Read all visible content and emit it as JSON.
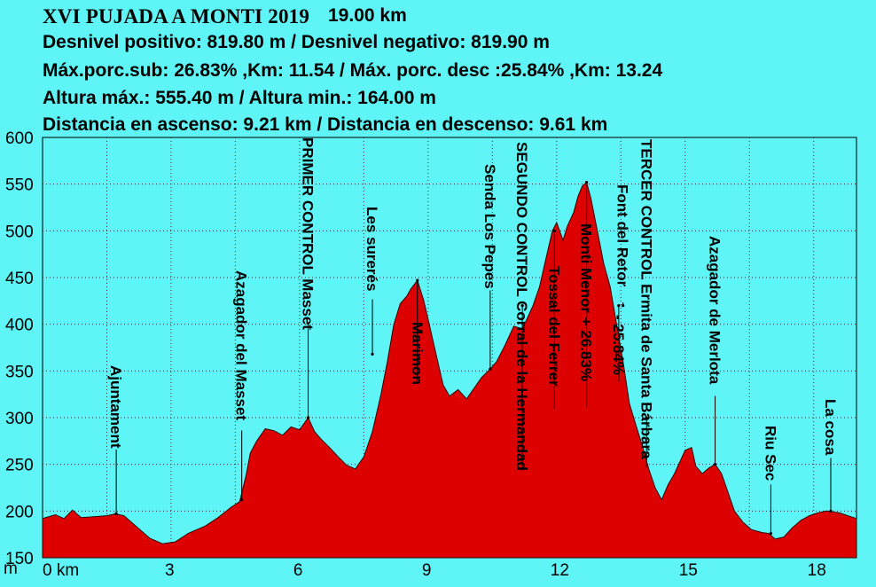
{
  "header": {
    "title": "XVI PUJADA A MONTI 2019",
    "distance": "19.00 km",
    "line1": "Desnivel positivo: 819.80 m / Desnivel negativo: 819.90 m",
    "line2": "Máx.porc.sub: 26.83% ,Km: 11.54 / Máx. porc. desc :25.84% ,Km: 13.24",
    "line3": "Altura máx.: 555.40 m / Altura min.: 164.00 m",
    "line4": "Distancia en ascenso: 9.21 km / Distancia en descenso: 9.61 km"
  },
  "colors": {
    "background": "#5ff4f6",
    "fill": "#dd0000",
    "outline": "#330000",
    "grid": "#333333"
  },
  "chart_data": {
    "type": "area",
    "xlim": [
      0,
      19.0
    ],
    "ylim": [
      150,
      600
    ],
    "y_unit": "m",
    "x_unit": "km",
    "y_ticks": [
      150,
      200,
      250,
      300,
      350,
      400,
      450,
      500,
      550,
      600
    ],
    "x_ticks": [
      0,
      3,
      6,
      9,
      12,
      15,
      18
    ],
    "x_tick_labels": [
      "0 km",
      "3",
      "6",
      "9",
      "12",
      "15",
      "18"
    ],
    "profile": [
      [
        0.0,
        192
      ],
      [
        0.3,
        196
      ],
      [
        0.5,
        192
      ],
      [
        0.7,
        201
      ],
      [
        0.9,
        193
      ],
      [
        1.2,
        194
      ],
      [
        1.5,
        195
      ],
      [
        1.7,
        197
      ],
      [
        1.9,
        195
      ],
      [
        2.2,
        183
      ],
      [
        2.5,
        171
      ],
      [
        2.8,
        165
      ],
      [
        3.1,
        167
      ],
      [
        3.4,
        176
      ],
      [
        3.8,
        184
      ],
      [
        4.1,
        193
      ],
      [
        4.4,
        204
      ],
      [
        4.6,
        210
      ],
      [
        4.75,
        238
      ],
      [
        4.85,
        262
      ],
      [
        5.0,
        275
      ],
      [
        5.2,
        288
      ],
      [
        5.4,
        286
      ],
      [
        5.6,
        281
      ],
      [
        5.8,
        290
      ],
      [
        6.0,
        287
      ],
      [
        6.2,
        300
      ],
      [
        6.35,
        285
      ],
      [
        6.5,
        277
      ],
      [
        6.7,
        268
      ],
      [
        6.9,
        258
      ],
      [
        7.1,
        249
      ],
      [
        7.3,
        245
      ],
      [
        7.5,
        258
      ],
      [
        7.7,
        285
      ],
      [
        7.9,
        325
      ],
      [
        8.05,
        360
      ],
      [
        8.2,
        400
      ],
      [
        8.35,
        422
      ],
      [
        8.5,
        430
      ],
      [
        8.6,
        438
      ],
      [
        8.75,
        447
      ],
      [
        8.9,
        425
      ],
      [
        9.05,
        395
      ],
      [
        9.2,
        365
      ],
      [
        9.35,
        335
      ],
      [
        9.5,
        323
      ],
      [
        9.7,
        330
      ],
      [
        9.9,
        320
      ],
      [
        10.05,
        330
      ],
      [
        10.25,
        343
      ],
      [
        10.45,
        352
      ],
      [
        10.6,
        360
      ],
      [
        10.8,
        378
      ],
      [
        11.0,
        398
      ],
      [
        11.2,
        395
      ],
      [
        11.3,
        405
      ],
      [
        11.45,
        420
      ],
      [
        11.6,
        440
      ],
      [
        11.75,
        470
      ],
      [
        11.9,
        500
      ],
      [
        12.0,
        509
      ],
      [
        12.15,
        490
      ],
      [
        12.25,
        505
      ],
      [
        12.4,
        520
      ],
      [
        12.5,
        537
      ],
      [
        12.6,
        548
      ],
      [
        12.7,
        552
      ],
      [
        12.8,
        535
      ],
      [
        12.95,
        500
      ],
      [
        13.1,
        465
      ],
      [
        13.25,
        440
      ],
      [
        13.4,
        400
      ],
      [
        13.55,
        360
      ],
      [
        13.7,
        315
      ],
      [
        13.85,
        292
      ],
      [
        14.0,
        270
      ],
      [
        14.15,
        245
      ],
      [
        14.3,
        225
      ],
      [
        14.45,
        212
      ],
      [
        14.6,
        228
      ],
      [
        14.75,
        240
      ],
      [
        14.9,
        255
      ],
      [
        15.0,
        265
      ],
      [
        15.15,
        268
      ],
      [
        15.25,
        248
      ],
      [
        15.4,
        240
      ],
      [
        15.55,
        246
      ],
      [
        15.7,
        250
      ],
      [
        15.85,
        240
      ],
      [
        16.0,
        220
      ],
      [
        16.15,
        200
      ],
      [
        16.35,
        188
      ],
      [
        16.55,
        180
      ],
      [
        16.8,
        177
      ],
      [
        16.95,
        176
      ],
      [
        17.1,
        170
      ],
      [
        17.3,
        172
      ],
      [
        17.5,
        182
      ],
      [
        17.7,
        190
      ],
      [
        17.9,
        195
      ],
      [
        18.1,
        198
      ],
      [
        18.3,
        200
      ],
      [
        18.6,
        198
      ],
      [
        18.8,
        195
      ],
      [
        19.0,
        192
      ]
    ],
    "annotations": [
      {
        "label": "Ajuntament",
        "km": 1.72,
        "elev": 197,
        "text_top": 412,
        "size": 17
      },
      {
        "label": "Azagador del Masset",
        "km": 4.65,
        "elev": 212,
        "text_top": 305,
        "size": 17
      },
      {
        "label": "PRIMER CONTROL  Masset",
        "km": 6.2,
        "elev": 300,
        "text_top": 155,
        "size": 17
      },
      {
        "label": "Les surerés",
        "km": 7.7,
        "elev": 368,
        "text_top": 233,
        "size": 17
      },
      {
        "label": "Marimon",
        "km": 8.75,
        "elev": 447,
        "text_top": 363,
        "size": 17
      },
      {
        "label": "Senda Los Pepes",
        "km": 10.45,
        "elev": 352,
        "text_top": 185,
        "size": 17
      },
      {
        "label": "SEGUNDO CONTROL  Corral de la Hermandad",
        "km": 11.2,
        "elev": 420,
        "text_top": 160,
        "size": 17
      },
      {
        "label": "Tossal del Ferrer",
        "km": 11.95,
        "elev": 500,
        "text_top": 300,
        "size": 17
      },
      {
        "label": "Monti Menor   + 26.83%",
        "km": 12.7,
        "elev": 552,
        "text_top": 252,
        "size": 17
      },
      {
        "label": "Font del Retor",
        "km": 13.55,
        "elev": 420,
        "text_top": 208,
        "size": 17
      },
      {
        "label": "- 25.84%",
        "km": 13.45,
        "elev": 420,
        "text_top": 355,
        "size": 17
      },
      {
        "label": "TERCER CONTROL  Ermita de Santa Bárbara",
        "km": 14.1,
        "elev": 300,
        "text_top": 157,
        "size": 17
      },
      {
        "label": "Azagador de Merlota",
        "km": 15.7,
        "elev": 250,
        "text_top": 266,
        "size": 17
      },
      {
        "label": "Riu Sec",
        "km": 17.0,
        "elev": 176,
        "text_top": 480,
        "size": 17
      },
      {
        "label": "La cosa",
        "km": 18.4,
        "elev": 200,
        "text_top": 450,
        "size": 17
      }
    ]
  }
}
